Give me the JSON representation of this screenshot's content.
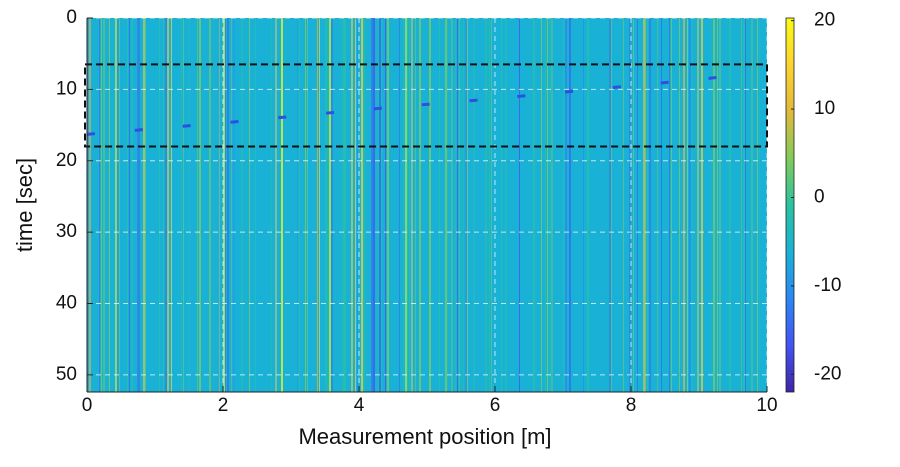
{
  "chart_data": {
    "type": "heatmap",
    "x_label": "Measurement position [m]",
    "y_label": "time [sec]",
    "xlim": [
      0,
      10
    ],
    "xticks": [
      0,
      2,
      4,
      6,
      8,
      10
    ],
    "ylim": [
      0,
      52.4
    ],
    "yticks": [
      0,
      10,
      20,
      30,
      40,
      50
    ],
    "y_reversed": true,
    "grid": true,
    "clim": [
      -22,
      20.3
    ],
    "cticks": [
      20,
      10,
      0,
      -10,
      -20
    ],
    "colormap": [
      "#3e26a8",
      "#4353f4",
      "#2b87f5",
      "#19b2d6",
      "#2ac3a0",
      "#81cc59",
      "#e2b93b",
      "#fcd32f",
      "#f9fb15"
    ],
    "streak": {
      "x": [
        0,
        1,
        2,
        3,
        4,
        5,
        6,
        7,
        8,
        9,
        9.7
      ],
      "values": [
        16.3,
        15.5,
        14.7,
        13.8,
        12.9,
        12.1,
        11.3,
        10.4,
        9.5,
        8.6,
        7.9
      ],
      "color": "#2f4fe0"
    },
    "highlight_box": {
      "xlim": [
        0,
        10
      ],
      "ylim": [
        6.5,
        18
      ]
    }
  }
}
